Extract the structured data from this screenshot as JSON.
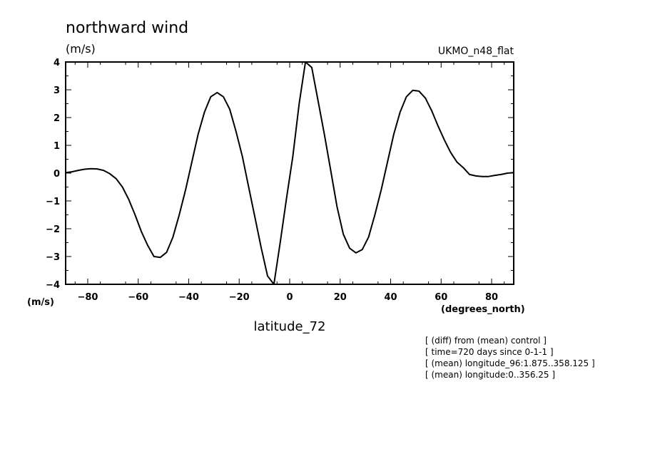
{
  "chart_data": {
    "type": "line",
    "title": "northward wind",
    "title_units": "(m/s)",
    "source_label": "UKMO_n48_flat",
    "ylabel": "(m/s)",
    "xlabel": "(degrees_north)",
    "x_name": "latitude_72",
    "xlim": [
      -88.75,
      88.75
    ],
    "ylim": [
      -4,
      4
    ],
    "grid": false,
    "x_ticks": [
      -80,
      -60,
      -40,
      -20,
      0,
      20,
      40,
      60,
      80
    ],
    "x_tick_labels": [
      "−80",
      "−60",
      "−40",
      "−20",
      "0",
      "20",
      "40",
      "60",
      "80"
    ],
    "y_ticks": [
      4,
      3,
      2,
      1,
      0,
      -1,
      -2,
      -3,
      -4
    ],
    "y_tick_labels": [
      "4",
      "3",
      "2",
      "1",
      "0",
      "−1",
      "−2",
      "−3",
      "−4"
    ],
    "series": [
      {
        "x": [
          -88.75,
          -86.25,
          -83.75,
          -81.25,
          -78.75,
          -76.25,
          -73.75,
          -71.25,
          -68.75,
          -66.25,
          -63.75,
          -61.25,
          -58.75,
          -56.25,
          -53.75,
          -51.25,
          -48.75,
          -46.25,
          -43.75,
          -41.25,
          -38.75,
          -36.25,
          -33.75,
          -31.25,
          -28.75,
          -26.25,
          -23.75,
          -21.25,
          -18.75,
          -16.25,
          -13.75,
          -11.25,
          -8.75,
          -6.25,
          -3.75,
          -1.25,
          1.25,
          3.75,
          6.25,
          8.75,
          11.25,
          13.75,
          16.25,
          18.75,
          21.25,
          23.75,
          26.25,
          28.75,
          31.25,
          33.75,
          36.25,
          38.75,
          41.25,
          43.75,
          46.25,
          48.75,
          51.25,
          53.75,
          56.25,
          58.75,
          61.25,
          63.75,
          66.25,
          68.75,
          71.25,
          73.75,
          76.25,
          78.75,
          81.25,
          83.75,
          86.25,
          88.75
        ],
        "values": [
          0.02,
          0.05,
          0.1,
          0.14,
          0.16,
          0.15,
          0.1,
          -0.02,
          -0.2,
          -0.5,
          -0.95,
          -1.5,
          -2.1,
          -2.6,
          -3.0,
          -3.03,
          -2.85,
          -2.3,
          -1.5,
          -0.6,
          0.4,
          1.4,
          2.2,
          2.75,
          2.9,
          2.75,
          2.3,
          1.5,
          0.6,
          -0.5,
          -1.6,
          -2.7,
          -3.7,
          -4.0,
          -2.5,
          -0.9,
          0.6,
          2.5,
          4.0,
          3.8,
          2.6,
          1.4,
          0.1,
          -1.2,
          -2.2,
          -2.7,
          -2.87,
          -2.75,
          -2.3,
          -1.5,
          -0.6,
          0.4,
          1.4,
          2.2,
          2.75,
          2.98,
          2.95,
          2.7,
          2.25,
          1.7,
          1.2,
          0.75,
          0.4,
          0.2,
          -0.05,
          -0.1,
          -0.12,
          -0.12,
          -0.08,
          -0.05,
          0.0,
          0.02
        ]
      }
    ],
    "annotations": [
      "[ (diff) from (mean) control ]",
      "[ time=720 days since 0-1-1 ]",
      "[ (mean) longitude_96:1.875..358.125 ]",
      "[ (mean) longitude:0..356.25 ]"
    ]
  }
}
